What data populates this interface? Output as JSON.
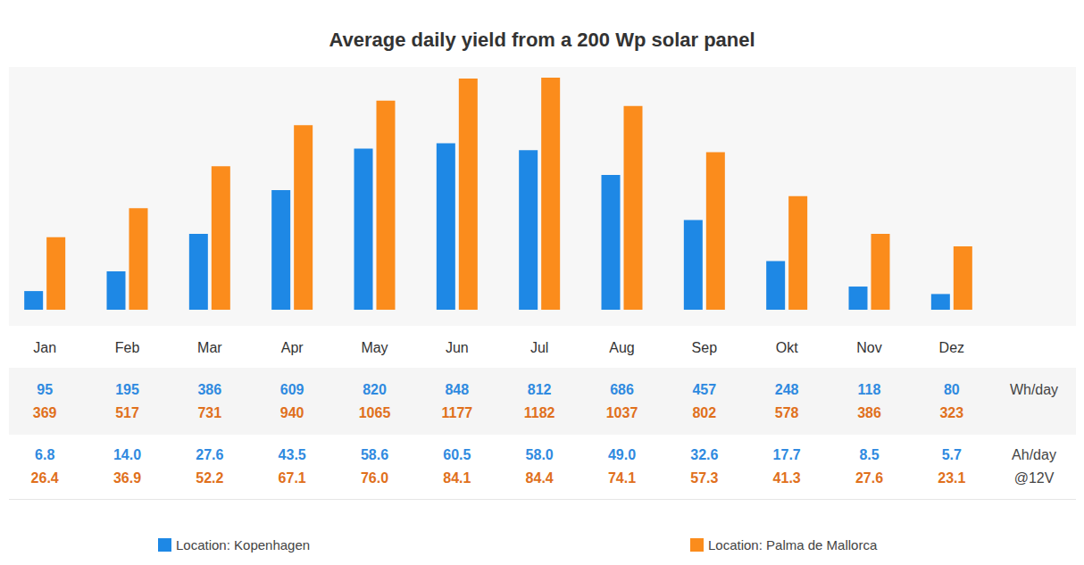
{
  "chart_data": {
    "type": "bar",
    "title": "Average daily yield from a 200 Wp solar panel",
    "categories": [
      "Jan",
      "Feb",
      "Mar",
      "Apr",
      "May",
      "Jun",
      "Jul",
      "Aug",
      "Sep",
      "Okt",
      "Nov",
      "Dez"
    ],
    "series": [
      {
        "name": "Location: Kopenhagen",
        "color": "#1e88e5",
        "values": [
          95,
          195,
          386,
          609,
          820,
          848,
          812,
          686,
          457,
          248,
          118,
          80
        ],
        "ah_per_day": [
          6.8,
          14.0,
          27.6,
          43.5,
          58.6,
          60.5,
          58.0,
          49.0,
          32.6,
          17.7,
          8.5,
          5.7
        ]
      },
      {
        "name": "Location: Palma de Mallorca",
        "color": "#fb8c1c",
        "values": [
          369,
          517,
          731,
          940,
          1065,
          1177,
          1182,
          1037,
          802,
          578,
          386,
          323
        ],
        "ah_per_day": [
          26.4,
          36.9,
          52.2,
          67.1,
          76.0,
          84.1,
          84.4,
          74.1,
          57.3,
          41.3,
          27.6,
          23.1
        ]
      }
    ],
    "row_labels": [
      [
        "Wh/day"
      ],
      [
        "Ah/day",
        "@12V"
      ]
    ],
    "ylim": [
      0,
      1250
    ],
    "tick_labels": "x",
    "grid": false,
    "legend": "bottom"
  }
}
